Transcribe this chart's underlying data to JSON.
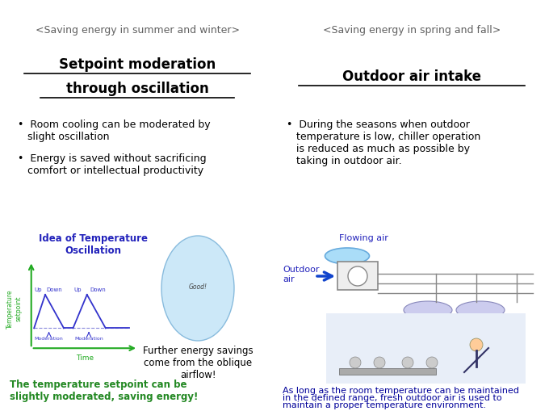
{
  "bg_color": "#ffffff",
  "left_header": "<Saving energy in summer and winter>",
  "right_header": "<Saving energy in spring and fall>",
  "left_title_line1": "Setpoint moderation",
  "left_title_line2": "through oscillation",
  "right_title": "Outdoor air intake",
  "left_bullet1_line1": "•  Room cooling can be moderated by",
  "left_bullet1_line2": "   slight oscillation",
  "left_bullet2_line1": "•  Energy is saved without sacrificing",
  "left_bullet2_line2": "   comfort or intellectual productivity",
  "right_bullet_line1": "•  During the seasons when outdoor",
  "right_bullet_line2": "   temperature is low, chiller operation",
  "right_bullet_line3": "   is reduced as much as possible by",
  "right_bullet_line4": "   taking in outdoor air.",
  "left_caption_line1": "The temperature setpoint can be",
  "left_caption_line2": "slightly moderated, saving energy!",
  "right_caption_line1": "As long as the room temperature can be maintained",
  "right_caption_line2": "in the defined range, fresh outdoor air is used to",
  "right_caption_line3": "maintain a proper temperature environment.",
  "oscillation_title_line1": "Idea of Temperature",
  "oscillation_title_line2": "Oscillation",
  "airflow_caption_line1": "Further energy savings",
  "airflow_caption_line2": "come from the oblique",
  "airflow_caption_line3": "airflow!",
  "flowing_air_label": "Flowing air",
  "outdoor_air_label": "Outdoor\nair",
  "header_color": "#606060",
  "title_color": "#000000",
  "bullet_color": "#000000",
  "oscillation_title_color": "#2222bb",
  "caption_left_color": "#228822",
  "caption_right_color": "#000099",
  "flowing_label_color": "#2222bb",
  "outdoor_label_color": "#2222bb",
  "arrow_color": "#1144cc",
  "green_axis_color": "#22aa22",
  "blue_line_color": "#3333cc",
  "blue_dashed_color": "#5555cc"
}
